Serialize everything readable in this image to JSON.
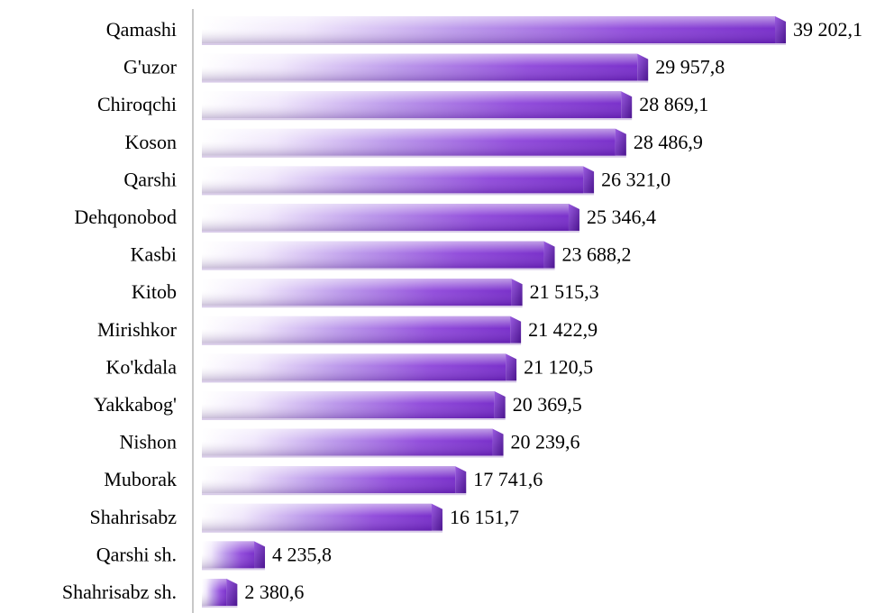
{
  "chart_data": {
    "type": "bar",
    "orientation": "horizontal",
    "title": "",
    "xlabel": "",
    "ylabel": "",
    "grid": false,
    "legend": "none",
    "categories": [
      "Qamashi",
      "G'uzor",
      "Chiroqchi",
      "Koson",
      "Qarshi",
      "Dehqonobod",
      "Kasbi",
      "Kitob",
      "Mirishkor",
      "Ko'kdala",
      "Yakkabog'",
      "Nishon",
      "Muborak",
      "Shahrisabz",
      "Qarshi sh.",
      "Shahrisabz sh."
    ],
    "values": [
      39202.1,
      29957.8,
      28869.1,
      28486.9,
      26321.0,
      25346.4,
      23688.2,
      21515.3,
      21422.9,
      21120.5,
      20369.5,
      20239.6,
      17741.6,
      16151.7,
      4235.8,
      2380.6
    ],
    "value_labels": [
      "39 202,1",
      "29 957,8",
      "28 869,1",
      "28 486,9",
      "26 321,0",
      "25 346,4",
      "23 688,2",
      "21 515,3",
      "21 422,9",
      "21 120,5",
      "20 369,5",
      "20 239,6",
      "17 741,6",
      "16 151,7",
      "4 235,8",
      "2 380,6"
    ],
    "colors": {
      "bar_light": "#ffffff",
      "bar_mid": "#c6a6ec",
      "bar_dark": "#7b2fd0",
      "bar_end": "#5d1fa8",
      "axis": "#c8c8c8"
    }
  }
}
